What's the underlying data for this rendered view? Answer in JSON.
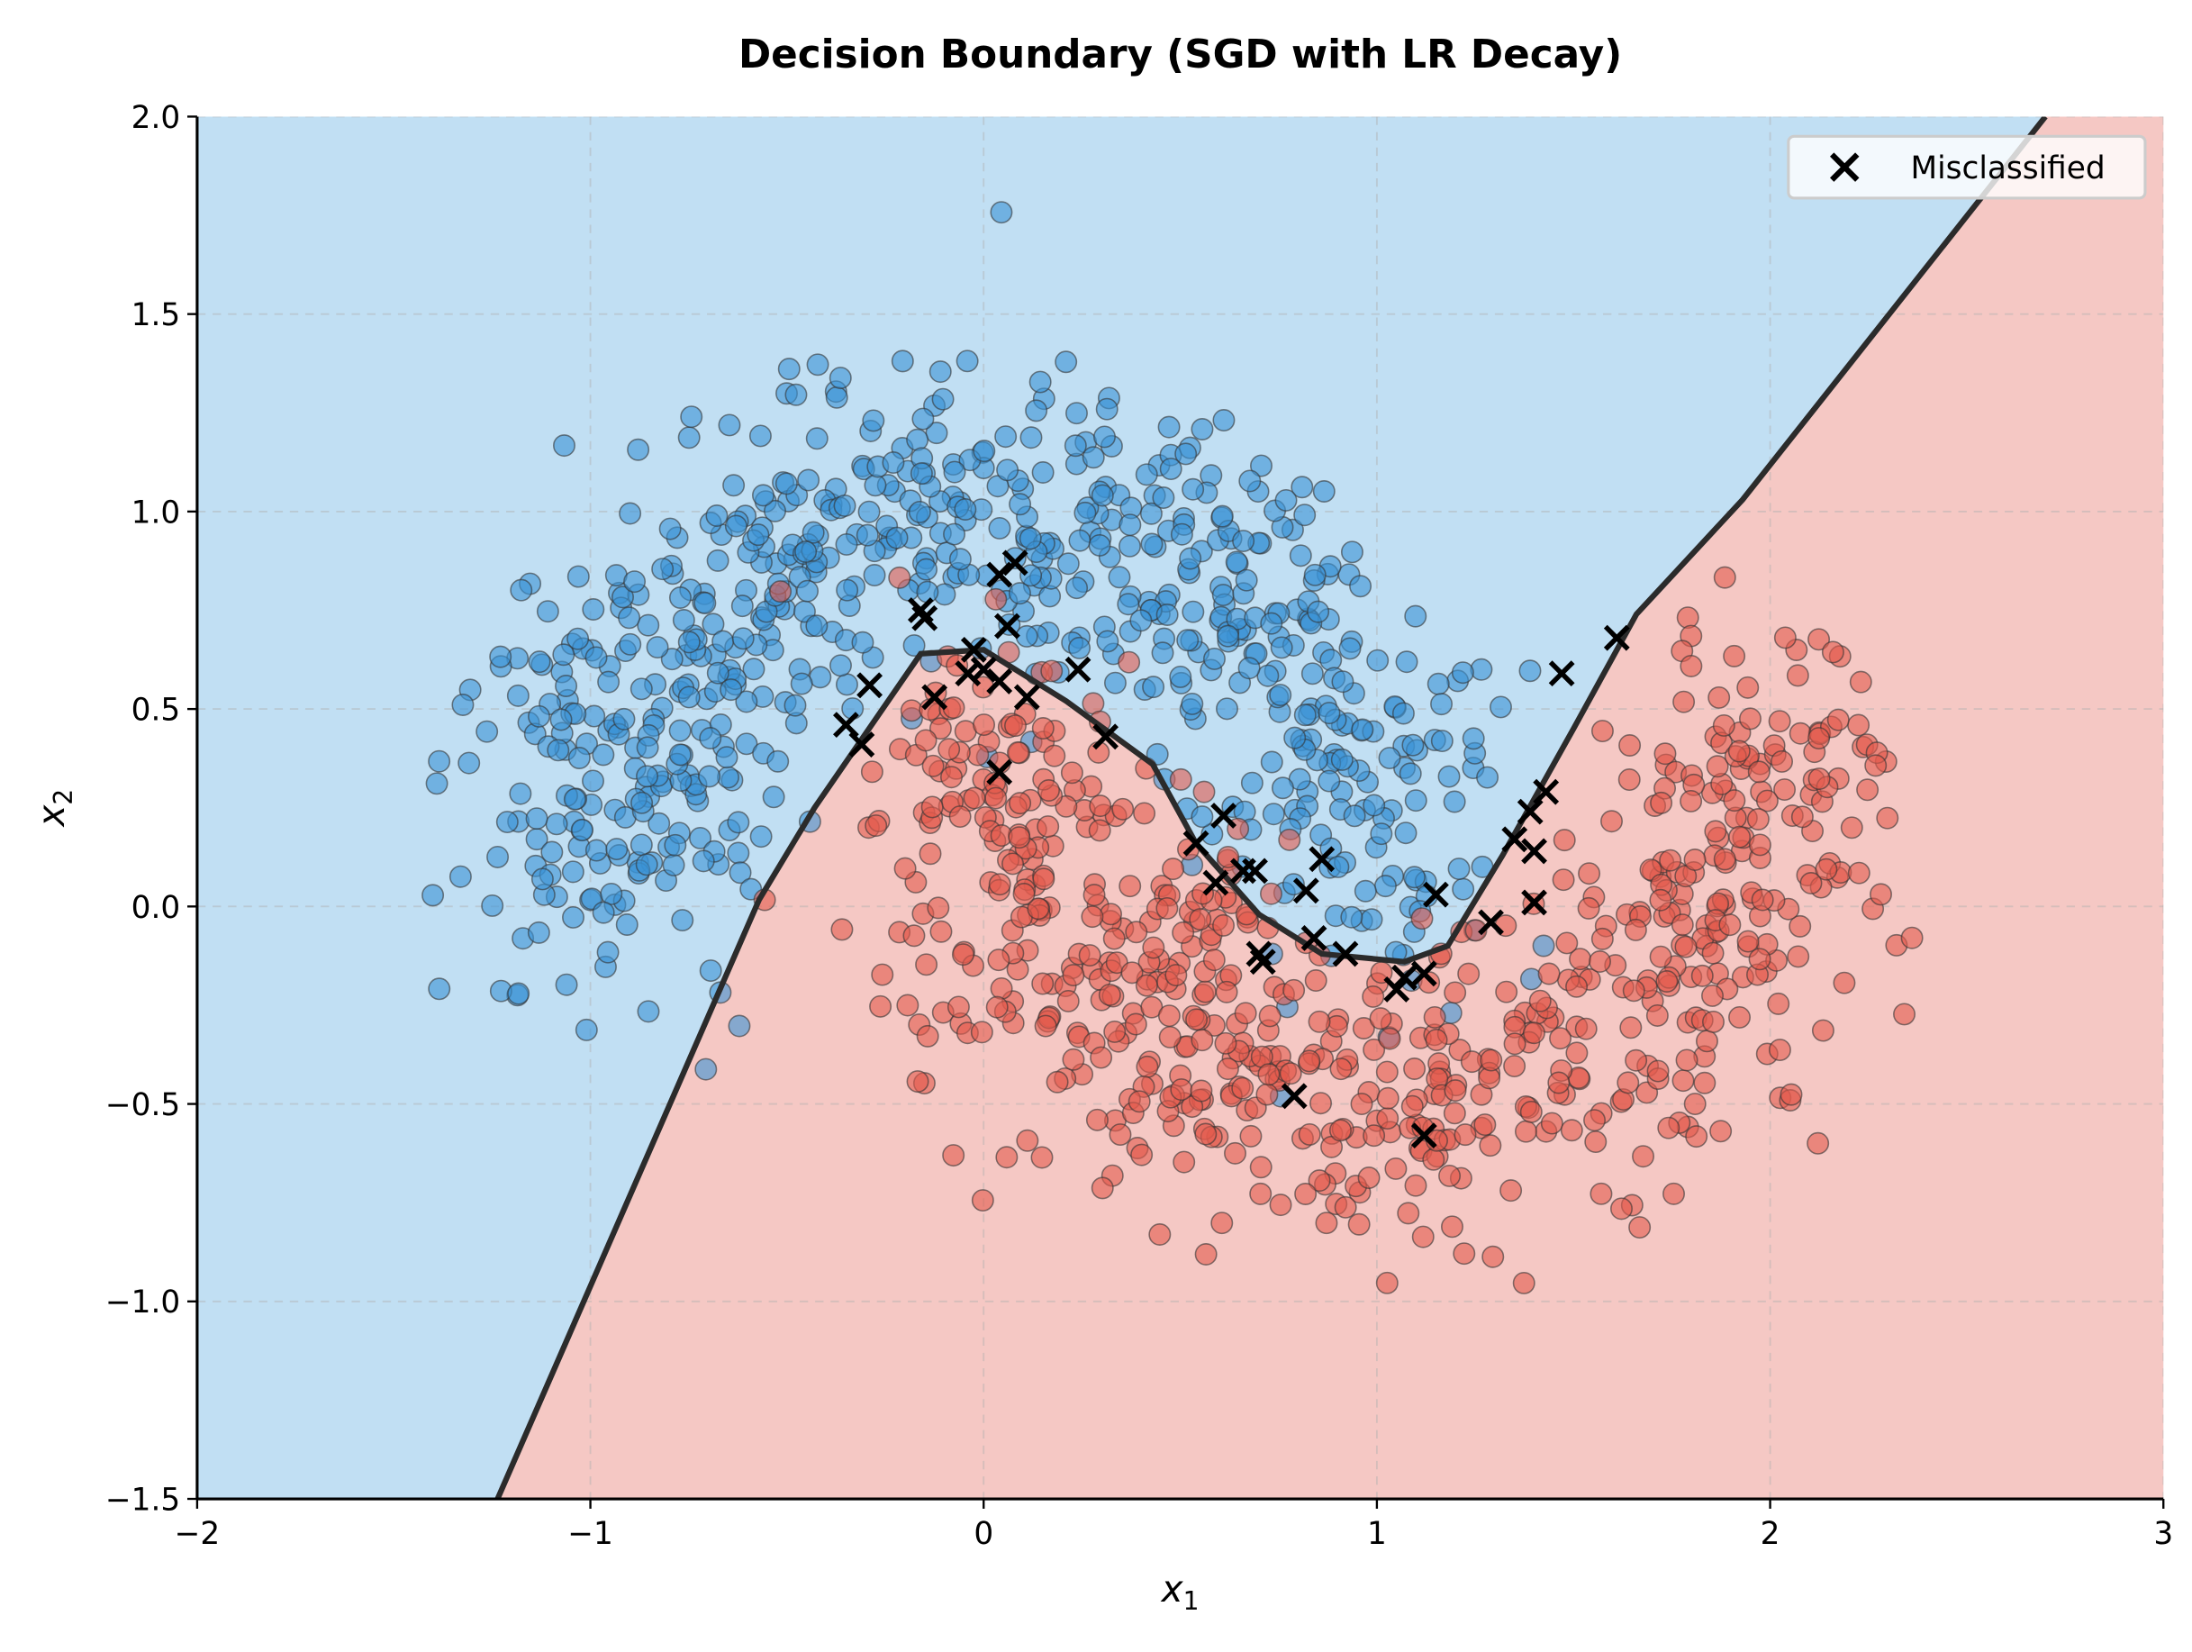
{
  "chart_data": {
    "type": "scatter",
    "title": "Decision Boundary (SGD with LR Decay)",
    "xlabel": "x",
    "xlabel_sub": "1",
    "ylabel": "x",
    "ylabel_sub": "2",
    "xlim": [
      -2,
      3
    ],
    "ylim": [
      -1.5,
      2
    ],
    "xticks": [
      -2,
      -1,
      0,
      1,
      2,
      3
    ],
    "xtick_labels": [
      "−2",
      "−1",
      "0",
      "1",
      "2",
      "3"
    ],
    "yticks": [
      -1.5,
      -1.0,
      -0.5,
      0.0,
      0.5,
      1.0,
      1.5,
      2.0
    ],
    "ytick_labels": [
      "−1.5",
      "−1.0",
      "−0.5",
      "0.0",
      "0.5",
      "1.0",
      "1.5",
      "2.0"
    ],
    "grid": true,
    "legend": {
      "placement": "top-right",
      "entries": [
        "Misclassified"
      ]
    },
    "colors": {
      "class0_region": "#c1dff3",
      "class1_region": "#f5c8c4",
      "class0_points": "#3a93d6",
      "class1_points": "#e35a4c",
      "boundary": "#2b2b2b",
      "misclassified": "#000000"
    },
    "decision_boundary": [
      [
        -1.236,
        -1.5
      ],
      [
        -0.571,
        0.017
      ],
      [
        -0.43,
        0.25
      ],
      [
        -0.16,
        0.64
      ],
      [
        0.0,
        0.65
      ],
      [
        0.21,
        0.52
      ],
      [
        0.43,
        0.36
      ],
      [
        0.54,
        0.16
      ],
      [
        0.7,
        -0.02
      ],
      [
        0.86,
        -0.12
      ],
      [
        1.07,
        -0.14
      ],
      [
        1.18,
        -0.1
      ],
      [
        1.32,
        0.13
      ],
      [
        1.5,
        0.45
      ],
      [
        1.66,
        0.74
      ],
      [
        1.93,
        1.03
      ],
      [
        2.7,
        2.0
      ]
    ],
    "misclassified": [
      [
        -0.35,
        0.46
      ],
      [
        -0.31,
        0.41
      ],
      [
        -0.29,
        0.56
      ],
      [
        -0.16,
        0.75
      ],
      [
        -0.15,
        0.73
      ],
      [
        -0.125,
        0.53
      ],
      [
        -0.04,
        0.59
      ],
      [
        -0.025,
        0.65
      ],
      [
        0.0,
        0.6
      ],
      [
        0.04,
        0.57
      ],
      [
        0.04,
        0.84
      ],
      [
        0.08,
        0.87
      ],
      [
        0.06,
        0.71
      ],
      [
        0.11,
        0.53
      ],
      [
        0.04,
        0.34
      ],
      [
        0.24,
        0.6
      ],
      [
        0.31,
        0.43
      ],
      [
        0.54,
        0.16
      ],
      [
        0.61,
        0.23
      ],
      [
        0.59,
        0.06
      ],
      [
        0.66,
        0.09
      ],
      [
        0.69,
        0.09
      ],
      [
        0.7,
        -0.12
      ],
      [
        0.71,
        -0.14
      ],
      [
        0.82,
        0.04
      ],
      [
        0.86,
        0.12
      ],
      [
        0.84,
        -0.08
      ],
      [
        0.92,
        -0.12
      ],
      [
        0.79,
        -0.48
      ],
      [
        1.05,
        -0.21
      ],
      [
        1.07,
        -0.18
      ],
      [
        1.12,
        -0.17
      ],
      [
        1.15,
        0.03
      ],
      [
        1.12,
        -0.58
      ],
      [
        1.29,
        -0.04
      ],
      [
        1.35,
        0.17
      ],
      [
        1.39,
        0.24
      ],
      [
        1.4,
        0.14
      ],
      [
        1.4,
        0.01
      ],
      [
        1.43,
        0.29
      ],
      [
        1.47,
        0.59
      ],
      [
        1.61,
        0.68
      ]
    ]
  }
}
